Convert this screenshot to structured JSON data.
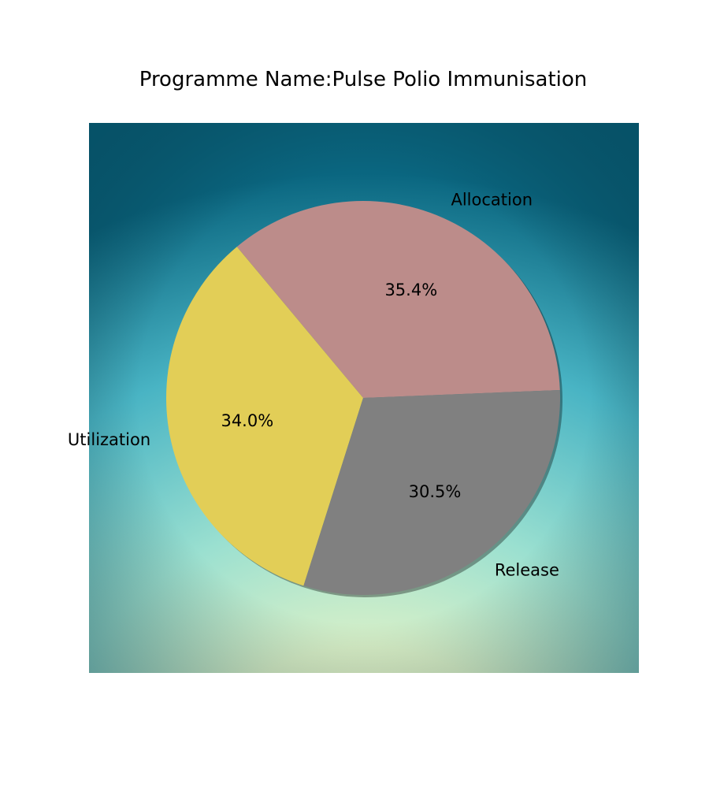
{
  "chart_data": {
    "type": "pie",
    "title": "Programme Name:Pulse Polio Immunisation",
    "slices": [
      {
        "label": "Allocation",
        "percent_label": "35.4%",
        "value": 35.4,
        "color": "#bc8c8a"
      },
      {
        "label": "Utilization",
        "percent_label": "34.0%",
        "value": 34.0,
        "color": "#e2ce57"
      },
      {
        "label": "Release",
        "percent_label": "30.5%",
        "value": 30.5,
        "color": "#808080"
      }
    ],
    "start_angle_deg": 2.3,
    "direction": "counterclockwise",
    "shadow": true,
    "background": {
      "style": "radial-gradient",
      "colors": [
        "#e6e6b8",
        "#d8f0c8",
        "#9be0d0",
        "#49b4c4",
        "#0a6680"
      ]
    }
  }
}
